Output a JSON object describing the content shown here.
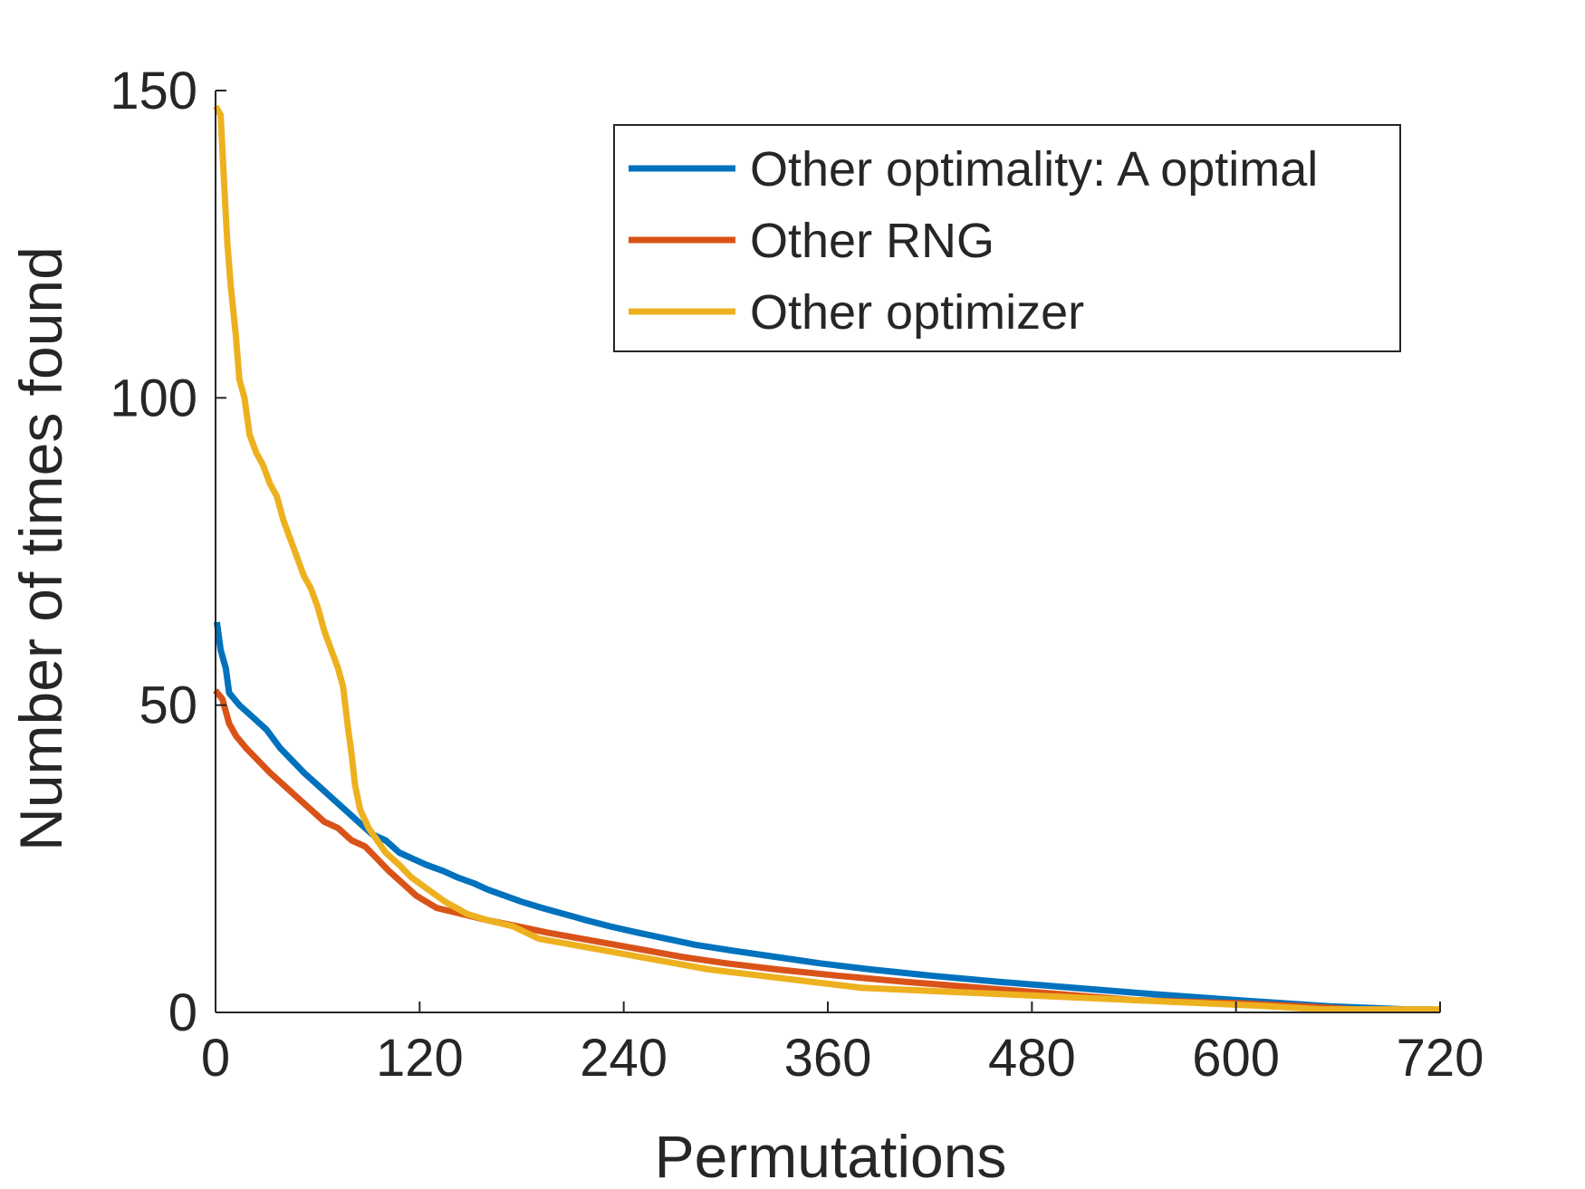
{
  "chart_data": {
    "type": "line",
    "title": "",
    "xlabel": "Permutations",
    "ylabel": "Number of times found",
    "xlim": [
      0,
      720
    ],
    "ylim": [
      0,
      150
    ],
    "xticks": [
      0,
      120,
      240,
      360,
      480,
      600,
      720
    ],
    "yticks": [
      0,
      50,
      100,
      150
    ],
    "grid": false,
    "legend_position": "top-right",
    "series": [
      {
        "name": "Other optimality: A optimal",
        "color": "#0072BD",
        "points": [
          [
            1,
            63
          ],
          [
            3,
            59
          ],
          [
            6,
            56
          ],
          [
            8,
            52
          ],
          [
            14,
            50
          ],
          [
            22,
            48
          ],
          [
            30,
            46
          ],
          [
            38,
            43
          ],
          [
            45,
            41
          ],
          [
            52,
            39
          ],
          [
            60,
            37
          ],
          [
            68,
            35
          ],
          [
            76,
            33
          ],
          [
            84,
            31
          ],
          [
            92,
            29
          ],
          [
            100,
            28
          ],
          [
            108,
            26
          ],
          [
            116,
            25
          ],
          [
            124,
            24
          ],
          [
            134,
            23
          ],
          [
            142,
            22
          ],
          [
            152,
            21
          ],
          [
            160,
            20
          ],
          [
            170,
            19
          ],
          [
            180,
            18
          ],
          [
            192,
            17
          ],
          [
            205,
            16
          ],
          [
            218,
            15
          ],
          [
            232,
            14
          ],
          [
            248,
            13
          ],
          [
            265,
            12
          ],
          [
            282,
            11
          ],
          [
            305,
            10
          ],
          [
            330,
            9
          ],
          [
            355,
            8
          ],
          [
            385,
            7
          ],
          [
            420,
            6
          ],
          [
            460,
            5
          ],
          [
            505,
            4
          ],
          [
            550,
            3
          ],
          [
            600,
            2
          ],
          [
            655,
            1
          ],
          [
            700,
            0.5
          ],
          [
            714,
            0.5
          ]
        ]
      },
      {
        "name": "Other RNG",
        "color": "#D95319",
        "points": [
          [
            1,
            52
          ],
          [
            4,
            51
          ],
          [
            8,
            47
          ],
          [
            12,
            45
          ],
          [
            18,
            43
          ],
          [
            25,
            41
          ],
          [
            32,
            39
          ],
          [
            40,
            37
          ],
          [
            48,
            35
          ],
          [
            56,
            33
          ],
          [
            64,
            31
          ],
          [
            72,
            30
          ],
          [
            80,
            28
          ],
          [
            88,
            27
          ],
          [
            95,
            25
          ],
          [
            102,
            23
          ],
          [
            110,
            21
          ],
          [
            118,
            19
          ],
          [
            130,
            17
          ],
          [
            145,
            16
          ],
          [
            160,
            15
          ],
          [
            178,
            14
          ],
          [
            195,
            13
          ],
          [
            215,
            12
          ],
          [
            235,
            11
          ],
          [
            255,
            10
          ],
          [
            275,
            9
          ],
          [
            300,
            8
          ],
          [
            330,
            7
          ],
          [
            365,
            6
          ],
          [
            405,
            5
          ],
          [
            450,
            4
          ],
          [
            495,
            3
          ],
          [
            540,
            2
          ],
          [
            600,
            1.5
          ],
          [
            640,
            1
          ],
          [
            670,
            0.5
          ]
        ]
      },
      {
        "name": "Other optimizer",
        "color": "#EDB120",
        "points": [
          [
            1,
            147
          ],
          [
            3,
            146
          ],
          [
            5,
            135
          ],
          [
            7,
            125
          ],
          [
            9,
            118
          ],
          [
            12,
            110
          ],
          [
            14,
            103
          ],
          [
            17,
            100
          ],
          [
            20,
            94
          ],
          [
            24,
            91
          ],
          [
            28,
            89
          ],
          [
            32,
            86
          ],
          [
            36,
            84
          ],
          [
            40,
            80
          ],
          [
            44,
            77
          ],
          [
            48,
            74
          ],
          [
            52,
            71
          ],
          [
            56,
            69
          ],
          [
            60,
            66
          ],
          [
            64,
            62
          ],
          [
            68,
            59
          ],
          [
            72,
            56
          ],
          [
            75,
            53
          ],
          [
            78,
            46
          ],
          [
            80,
            42
          ],
          [
            82,
            37
          ],
          [
            85,
            33
          ],
          [
            90,
            30
          ],
          [
            95,
            28
          ],
          [
            100,
            26
          ],
          [
            108,
            24
          ],
          [
            115,
            22
          ],
          [
            125,
            20
          ],
          [
            135,
            18
          ],
          [
            148,
            16
          ],
          [
            160,
            15
          ],
          [
            175,
            14
          ],
          [
            190,
            12
          ],
          [
            210,
            11
          ],
          [
            230,
            10
          ],
          [
            250,
            9
          ],
          [
            270,
            8
          ],
          [
            290,
            7
          ],
          [
            320,
            6
          ],
          [
            350,
            5
          ],
          [
            380,
            4
          ],
          [
            420,
            3.5
          ],
          [
            460,
            3
          ],
          [
            500,
            2.5
          ],
          [
            540,
            2
          ],
          [
            580,
            1.5
          ],
          [
            620,
            1
          ],
          [
            650,
            0.5
          ],
          [
            718,
            0.5
          ]
        ]
      }
    ]
  }
}
